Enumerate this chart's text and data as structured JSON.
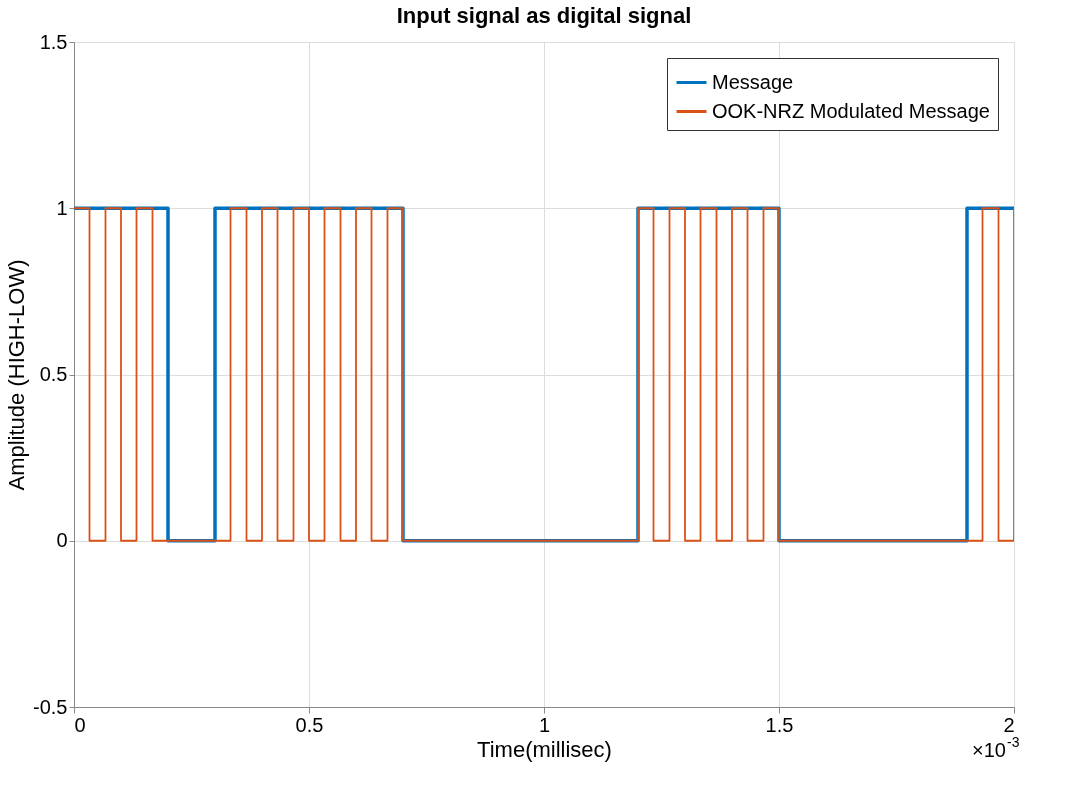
{
  "chart_data": {
    "type": "line",
    "title": "Input signal as digital signal",
    "xlabel": "Time(millisec)",
    "ylabel": "Amplitude (HIGH-LOW)",
    "xlim": [
      0,
      2
    ],
    "xticks": [
      0,
      0.5,
      1,
      1.5,
      2
    ],
    "ylim": [
      -0.5,
      1.5
    ],
    "yticks": [
      -0.5,
      0,
      0.5,
      1,
      1.5
    ],
    "grid": true,
    "legend": "top right",
    "annotations": [
      "×10$^{-3}$"
    ],
    "series": [
      {
        "name": "Message",
        "color": "#0072bd",
        "x": [
          0,
          0.2,
          0.2,
          0.3,
          0.3,
          0.7,
          0.7,
          1.2,
          1.2,
          1.5,
          1.5,
          1.9,
          1.9,
          2
        ],
        "values": [
          1,
          1,
          0,
          0,
          1,
          1,
          0,
          0,
          1,
          1,
          0,
          0,
          1,
          1
        ]
      },
      {
        "name": "OOK-NRZ Modulated Message",
        "color": "#d95319",
        "x": [
          0,
          0.033,
          0.033,
          0.067,
          0.067,
          0.1,
          0.1,
          0.133,
          0.133,
          0.167,
          0.167,
          0.333,
          0.333,
          0.367,
          0.367,
          0.4,
          0.4,
          0.433,
          0.433,
          0.467,
          0.467,
          0.5,
          0.5,
          0.533,
          0.533,
          0.567,
          0.567,
          0.6,
          0.6,
          0.633,
          0.633,
          0.667,
          0.667,
          0.7,
          0.7,
          1.2,
          1.2,
          1.233,
          1.233,
          1.267,
          1.267,
          1.3,
          1.3,
          1.333,
          1.333,
          1.367,
          1.367,
          1.4,
          1.4,
          1.433,
          1.433,
          1.467,
          1.467,
          1.5,
          1.5,
          1.933,
          1.933,
          1.967,
          1.967,
          2,
          2
        ],
        "values": [
          1,
          1,
          0,
          0,
          1,
          1,
          0,
          0,
          1,
          1,
          0,
          0,
          1,
          1,
          0,
          0,
          1,
          1,
          0,
          0,
          1,
          1,
          0,
          0,
          1,
          1,
          0,
          0,
          1,
          1,
          0,
          0,
          1,
          1,
          0,
          0,
          1,
          1,
          0,
          0,
          1,
          1,
          0,
          0,
          1,
          1,
          0,
          0,
          1,
          1,
          0,
          0,
          1,
          1,
          0,
          0,
          1,
          1,
          0,
          0,
          1
        ]
      }
    ]
  }
}
